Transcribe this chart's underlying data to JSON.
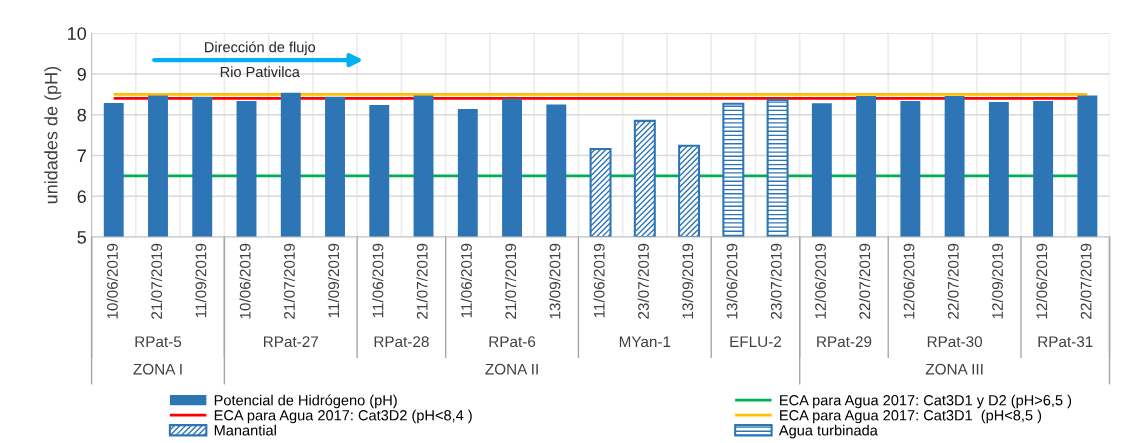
{
  "chart_data": {
    "type": "bar",
    "ylabel": "unidades de (pH)",
    "categories": [
      "10/06/2019",
      "21/07/2019",
      "11/09/2019",
      "10/06/2019",
      "21/07/2019",
      "11/09/2019",
      "11/06/2019",
      "21/07/2019",
      "11/06/2019",
      "21/07/2019",
      "13/09/2019",
      "11/06/2019",
      "23/07/2019",
      "13/09/2019",
      "13/06/2019",
      "23/07/2019",
      "12/06/2019",
      "22/07/2019",
      "12/06/2019",
      "22/07/2019",
      "12/09/2019",
      "12/06/2019",
      "22/07/2019"
    ],
    "series": [
      {
        "name": "Potencial de Hidrógeno (pH)",
        "color": "#2e75b6",
        "values": [
          8.29,
          8.47,
          8.44,
          8.34,
          8.54,
          8.44,
          8.24,
          8.47,
          8.14,
          8.39,
          8.25,
          null,
          null,
          null,
          null,
          null,
          8.28,
          8.46,
          8.34,
          8.46,
          8.31,
          8.34,
          8.47
        ]
      },
      {
        "name": "Manantial",
        "color": "#2e75b6",
        "values": [
          null,
          null,
          null,
          null,
          null,
          null,
          null,
          null,
          null,
          null,
          null,
          7.16,
          7.85,
          7.24,
          null,
          null,
          null,
          null,
          null,
          null,
          null,
          null,
          null
        ]
      },
      {
        "name": "Agua turbinada",
        "color": "#2e75b6",
        "values": [
          null,
          null,
          null,
          null,
          null,
          null,
          null,
          null,
          null,
          null,
          null,
          null,
          null,
          null,
          8.27,
          8.36,
          null,
          null,
          null,
          null,
          null,
          null,
          null
        ]
      }
    ],
    "ref_lines": [
      {
        "axis": "y",
        "value": 8.4,
        "label": "ECA para Agua 2017: Cat3D2 (pH<8,4 )",
        "color": "#ff0000"
      },
      {
        "axis": "y",
        "value": 6.5,
        "label": "ECA para Agua 2017: Cat3D1 y D2 (pH>6,5 )",
        "color": "#00b050"
      },
      {
        "axis": "y",
        "value": 8.5,
        "label": "ECA para Agua 2017: Cat3D1  (pH<8,5 )",
        "color": "#ffc000"
      }
    ],
    "annotations": [
      "Dirección de flujo",
      "Rio Pativilca",
      "RPat-5",
      "RPat-27",
      "RPat-28",
      "RPat-6",
      "MYan-1",
      "EFLU-2",
      "RPat-29",
      "RPat-30",
      "RPat-31",
      "ZONA I",
      "ZONA II",
      "ZONA III"
    ],
    "ylim": [
      5,
      10
    ],
    "yticks": [
      5,
      6,
      7,
      8,
      9,
      10
    ],
    "grid": true,
    "legend": "bottom"
  }
}
